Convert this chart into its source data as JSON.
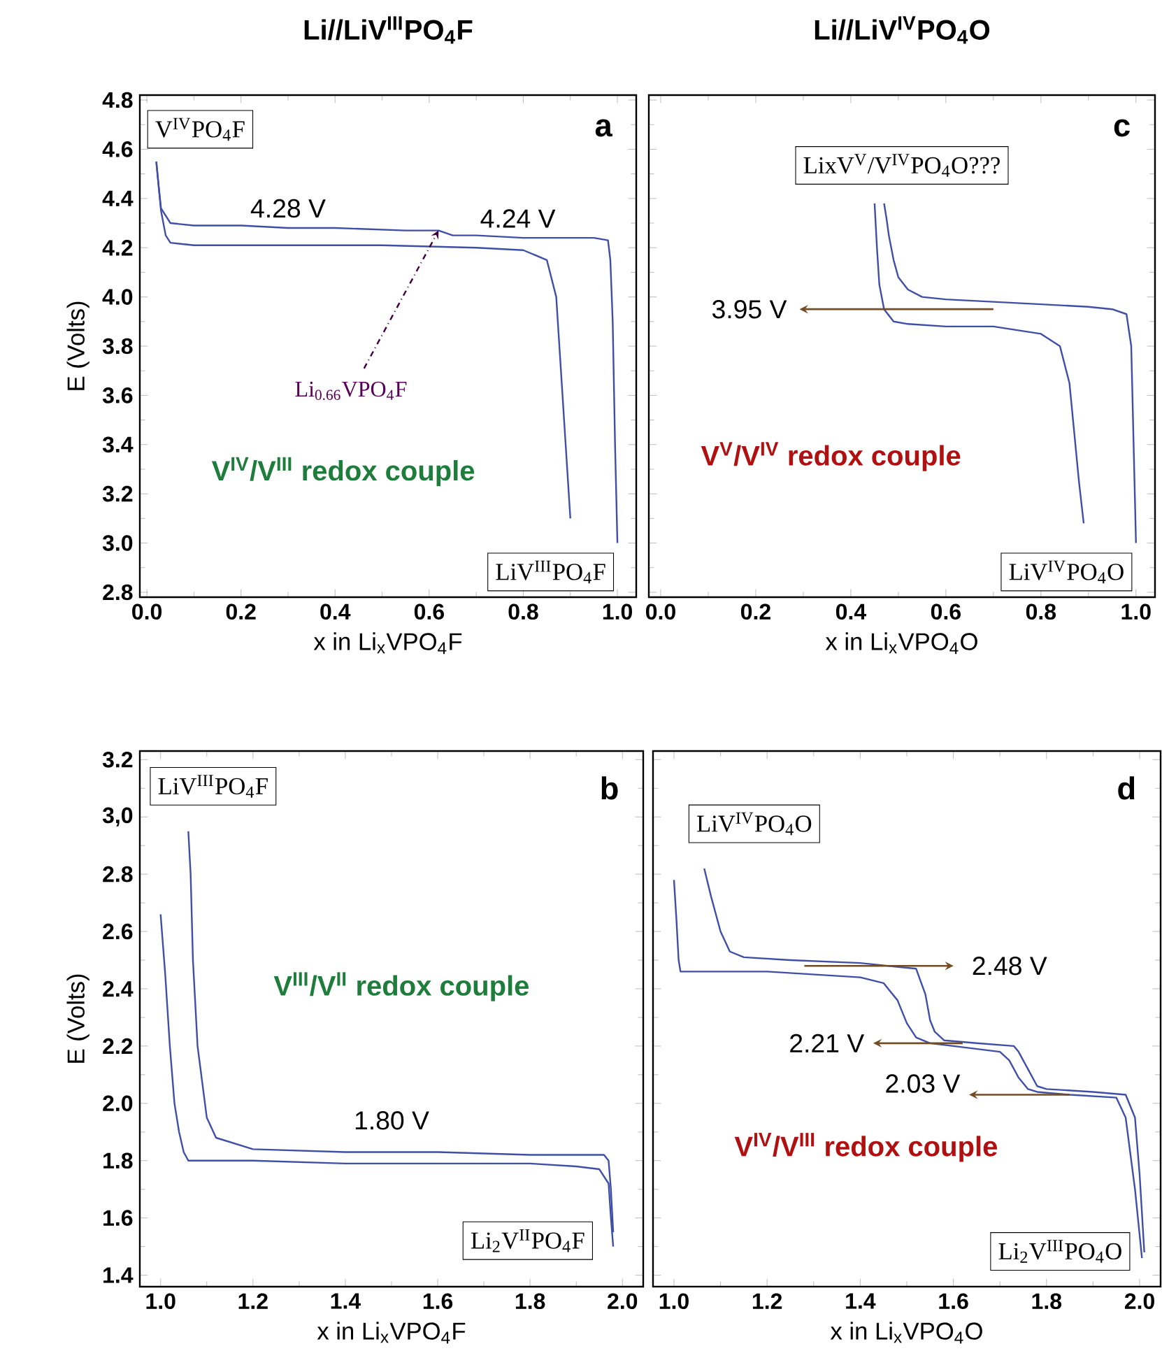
{
  "chart_data": [
    {
      "type": "line",
      "title": "Li//LiV$^{III}$PO$_{4}$F",
      "xlabel": "x in Li$_{x}$VPO$_{4}$F",
      "ylabel": "E (Volts)",
      "xlim": [
        -0.015,
        1.04
      ],
      "ylim": [
        2.78,
        4.82
      ],
      "xticks": [
        {
          "value": 0,
          "label": "0.0"
        },
        0.2,
        0.4,
        0.6,
        0.8,
        {
          "value": 1,
          "label": "1.0"
        }
      ],
      "yticks": [
        2.8,
        {
          "value": 3,
          "label": "3.0"
        },
        3.2,
        3.4,
        3.6,
        3.8,
        {
          "value": 4,
          "label": "4.0"
        },
        4.2,
        4.4,
        4.6,
        4.8
      ],
      "series": [
        {
          "color": "#3f4fa8",
          "x": [
            1.0,
            0.995,
            0.99,
            0.985,
            0.98,
            0.95,
            0.9,
            0.8,
            0.7,
            0.65,
            0.62,
            0.55,
            0.4,
            0.3,
            0.2,
            0.1,
            0.05,
            0.03,
            0.025,
            0.02
          ],
          "values": [
            3.0,
            3.4,
            3.9,
            4.15,
            4.23,
            4.24,
            4.24,
            4.24,
            4.25,
            4.25,
            4.27,
            4.27,
            4.28,
            4.28,
            4.29,
            4.29,
            4.3,
            4.36,
            4.45,
            4.55
          ]
        },
        {
          "color": "#3f4fa8",
          "x": [
            0.02,
            0.03,
            0.04,
            0.05,
            0.1,
            0.3,
            0.5,
            0.7,
            0.8,
            0.85,
            0.87,
            0.88,
            0.89,
            0.9
          ],
          "values": [
            4.55,
            4.35,
            4.25,
            4.22,
            4.21,
            4.21,
            4.21,
            4.2,
            4.19,
            4.15,
            4.0,
            3.7,
            3.4,
            3.1
          ]
        }
      ],
      "annotations": [
        "a",
        "V$^{IV}$PO$_{4}$F",
        "LiV$^{III}$PO$_{4}$F",
        "V$^{IV}$/V$^{III}$ redox couple",
        {
          "text": "4.28 V",
          "x": 0.3,
          "y": 4.28
        },
        {
          "text": "4.24 V",
          "x": 0.82,
          "y": 4.24
        },
        {
          "text": "Li$_{0.66}$VPO$_{4}$F",
          "x": 0.62,
          "y": 4.27
        }
      ]
    },
    {
      "type": "line",
      "title": "Li//LiV$^{IV}$PO$_{4}$O",
      "xlabel": "x in Li$_{x}$VPO$_{4}$O",
      "tick_labels": "x",
      "xlim": [
        -0.025,
        1.04
      ],
      "ylim": [
        2.78,
        4.82
      ],
      "xticks": [
        {
          "value": 0,
          "label": "0.0"
        },
        0.2,
        0.4,
        0.6,
        0.8,
        {
          "value": 1,
          "label": "1.0"
        }
      ],
      "yticks": [
        2.8,
        3.0,
        3.2,
        3.4,
        3.6,
        3.8,
        4.0,
        4.2,
        4.4,
        4.6,
        4.8
      ],
      "series": [
        {
          "color": "#3f4fa8",
          "x": [
            1.0,
            0.995,
            0.99,
            0.98,
            0.95,
            0.9,
            0.8,
            0.7,
            0.6,
            0.55,
            0.52,
            0.5,
            0.49,
            0.48,
            0.475,
            0.47
          ],
          "values": [
            3.0,
            3.4,
            3.8,
            3.93,
            3.95,
            3.96,
            3.97,
            3.98,
            3.99,
            4.0,
            4.03,
            4.08,
            4.15,
            4.25,
            4.32,
            4.38
          ]
        },
        {
          "color": "#3f4fa8",
          "x": [
            0.45,
            0.455,
            0.46,
            0.47,
            0.49,
            0.52,
            0.6,
            0.7,
            0.8,
            0.84,
            0.86,
            0.87,
            0.88,
            0.89
          ],
          "values": [
            4.38,
            4.2,
            4.05,
            3.95,
            3.9,
            3.89,
            3.88,
            3.88,
            3.85,
            3.8,
            3.65,
            3.45,
            3.25,
            3.08
          ]
        }
      ],
      "annotations": [
        "c",
        "LixV$^{V}$/V$^{IV}$PO$_{4}$O???",
        "LiV$^{IV}$PO$_{4}$O",
        "V$^{V}$/V$^{IV}$ redox couple",
        {
          "text": "3.95 V",
          "x": 0.7,
          "y": 3.95
        }
      ]
    },
    {
      "type": "line",
      "xlabel": "x in Li$_{x}$VPO$_{4}$F",
      "ylabel": "E (Volts)",
      "xlim": [
        0.955,
        2.045
      ],
      "ylim": [
        1.36,
        3.23
      ],
      "xticks": [
        {
          "value": 1,
          "label": "1.0"
        },
        1.2,
        1.4,
        1.6,
        1.8,
        {
          "value": 2,
          "label": "2.0"
        }
      ],
      "yticks": [
        1.4,
        1.6,
        1.8,
        {
          "value": 2,
          "label": "2.0"
        },
        2.2,
        2.4,
        2.6,
        2.8,
        {
          "value": 3,
          "label": "3,0"
        },
        3.2
      ],
      "series": [
        {
          "color": "#3f4fa8",
          "x": [
            1.0,
            1.01,
            1.02,
            1.03,
            1.04,
            1.05,
            1.06,
            1.08,
            1.2,
            1.4,
            1.6,
            1.8,
            1.9,
            1.95,
            1.97,
            1.975,
            1.98
          ],
          "values": [
            2.66,
            2.45,
            2.2,
            2.0,
            1.9,
            1.83,
            1.8,
            1.8,
            1.8,
            1.79,
            1.79,
            1.79,
            1.78,
            1.77,
            1.72,
            1.6,
            1.5
          ]
        },
        {
          "color": "#3f4fa8",
          "x": [
            1.98,
            1.975,
            1.97,
            1.96,
            1.9,
            1.8,
            1.6,
            1.4,
            1.2,
            1.12,
            1.1,
            1.08,
            1.07,
            1.065,
            1.06
          ],
          "values": [
            1.55,
            1.7,
            1.8,
            1.82,
            1.82,
            1.82,
            1.83,
            1.83,
            1.84,
            1.88,
            1.95,
            2.2,
            2.5,
            2.8,
            2.95
          ]
        }
      ],
      "annotations": [
        "b",
        "LiV$^{III}$PO$_{4}$F",
        "Li$_{2}$V$^{II}$PO$_{4}$F",
        "V$^{III}$/V$^{II}$ redox couple",
        {
          "text": "1.80 V",
          "x": 1.5,
          "y": 1.82
        }
      ]
    },
    {
      "type": "line",
      "xlabel": "x in Li$_{x}$VPO$_{4}$O",
      "tick_labels": "x",
      "xlim": [
        0.955,
        2.045
      ],
      "ylim": [
        1.36,
        3.23
      ],
      "xticks": [
        {
          "value": 1,
          "label": "1.0"
        },
        1.2,
        1.4,
        1.6,
        1.8,
        {
          "value": 2,
          "label": "2.0"
        }
      ],
      "yticks": [
        1.4,
        1.6,
        1.8,
        2.0,
        2.2,
        2.4,
        2.6,
        2.8,
        3.0,
        3.2
      ],
      "series": [
        {
          "color": "#3f4fa8",
          "x": [
            2.01,
            2.0,
            1.99,
            1.97,
            1.9,
            1.8,
            1.78,
            1.76,
            1.74,
            1.73,
            1.65,
            1.58,
            1.56,
            1.55,
            1.54,
            1.52,
            1.4,
            1.25,
            1.15,
            1.12,
            1.1,
            1.08,
            1.065
          ],
          "values": [
            1.48,
            1.75,
            1.95,
            2.03,
            2.04,
            2.05,
            2.06,
            2.12,
            2.18,
            2.2,
            2.21,
            2.22,
            2.25,
            2.29,
            2.38,
            2.47,
            2.49,
            2.5,
            2.51,
            2.53,
            2.6,
            2.72,
            2.82
          ]
        },
        {
          "color": "#3f4fa8",
          "x": [
            1.0,
            1.005,
            1.01,
            1.014,
            1.05,
            1.2,
            1.3,
            1.4,
            1.45,
            1.48,
            1.5,
            1.52,
            1.55,
            1.6,
            1.7,
            1.72,
            1.74,
            1.76,
            1.78,
            1.85,
            1.95,
            1.97,
            1.99,
            2.005
          ],
          "values": [
            2.78,
            2.65,
            2.5,
            2.46,
            2.46,
            2.46,
            2.45,
            2.44,
            2.42,
            2.36,
            2.28,
            2.23,
            2.21,
            2.2,
            2.18,
            2.15,
            2.09,
            2.05,
            2.04,
            2.03,
            2.02,
            1.95,
            1.7,
            1.46
          ]
        }
      ],
      "annotations": [
        "d",
        "LiV$^{IV}$PO$_{4}$O",
        "Li$_{2}$V$^{III}$PO$_{4}$O",
        "V$^{IV}$/V$^{III}$ redox couple",
        {
          "text": "2.48 V",
          "x": 1.28,
          "y": 2.48
        },
        {
          "text": "2.21 V",
          "x": 1.62,
          "y": 2.21
        },
        {
          "text": "2.03 V",
          "x": 1.85,
          "y": 2.03
        }
      ]
    }
  ]
}
